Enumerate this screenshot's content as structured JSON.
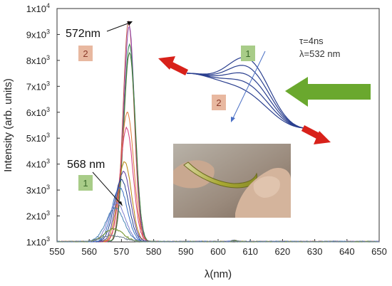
{
  "chart_data": {
    "type": "line",
    "xlabel": "λ(nm)",
    "ylabel": "Intensity (arb. units)",
    "xlim": [
      550,
      650
    ],
    "ylim": [
      1000,
      10000
    ],
    "xticks": [
      550,
      560,
      570,
      580,
      590,
      600,
      610,
      620,
      630,
      640,
      650
    ],
    "yticks": [
      {
        "value": 1000,
        "label": "1x10",
        "exp": "3"
      },
      {
        "value": 2000,
        "label": "2x10",
        "exp": "3"
      },
      {
        "value": 3000,
        "label": "3x10",
        "exp": "3"
      },
      {
        "value": 4000,
        "label": "4x10",
        "exp": "3"
      },
      {
        "value": 5000,
        "label": "5x10",
        "exp": "3"
      },
      {
        "value": 6000,
        "label": "6x10",
        "exp": "3"
      },
      {
        "value": 7000,
        "label": "7x10",
        "exp": "3"
      },
      {
        "value": 8000,
        "label": "8x10",
        "exp": "3"
      },
      {
        "value": 9000,
        "label": "9x10",
        "exp": "3"
      },
      {
        "value": 10000,
        "label": "1x10",
        "exp": "4"
      }
    ],
    "grid": false,
    "baseline": 1000,
    "series": [
      {
        "center": 572.2,
        "peak": 9500,
        "width": 1.7,
        "color": "#c0504d"
      },
      {
        "center": 572.4,
        "peak": 9300,
        "width": 1.7,
        "color": "#8e44ad"
      },
      {
        "center": 572.5,
        "peak": 8600,
        "width": 1.8,
        "color": "#2e8b57"
      },
      {
        "center": 572.5,
        "peak": 8300,
        "width": 1.8,
        "color": "#4a7a3a"
      },
      {
        "center": 571.8,
        "peak": 6000,
        "width": 2.0,
        "color": "#e07b39"
      },
      {
        "center": 571.6,
        "peak": 5400,
        "width": 2.0,
        "color": "#d63a7a"
      },
      {
        "center": 571.0,
        "peak": 4100,
        "width": 2.1,
        "color": "#b8860b"
      },
      {
        "center": 570.6,
        "peak": 3700,
        "width": 2.2,
        "color": "#5b3a9a"
      },
      {
        "center": 570.0,
        "peak": 3400,
        "width": 2.3,
        "color": "#1f3f8f"
      },
      {
        "center": 569.4,
        "peak": 3100,
        "width": 2.4,
        "color": "#3a6fc4"
      },
      {
        "center": 568.6,
        "peak": 2500,
        "width": 2.6,
        "color": "#7f7fd0"
      },
      {
        "center": 568.0,
        "peak": 2300,
        "width": 2.8,
        "color": "#4682b4"
      },
      {
        "center": 567.6,
        "peak": 1500,
        "width": 3.0,
        "color": "#6b8e23"
      },
      {
        "center": 567.0,
        "peak": 1250,
        "width": 3.5,
        "color": "#708090"
      }
    ],
    "annotations": [
      {
        "text": "572nm",
        "x": 572,
        "y": 9500
      },
      {
        "text": "568 nm",
        "x": 568,
        "y": 2300
      }
    ]
  },
  "labels": {
    "peak_572": "572nm",
    "peak_568": "568 nm",
    "badge_1": "1",
    "badge_2": "2",
    "tau": "τ=4ns",
    "lambda_exc": "λ=532 nm"
  },
  "colors": {
    "badge_1_bg": "#a8cc88",
    "badge_2_bg": "#e8b8a0",
    "big_arrow": "#6aa82e",
    "red_arrow": "#d8211a",
    "curve_blue": "#2a3f8f"
  }
}
